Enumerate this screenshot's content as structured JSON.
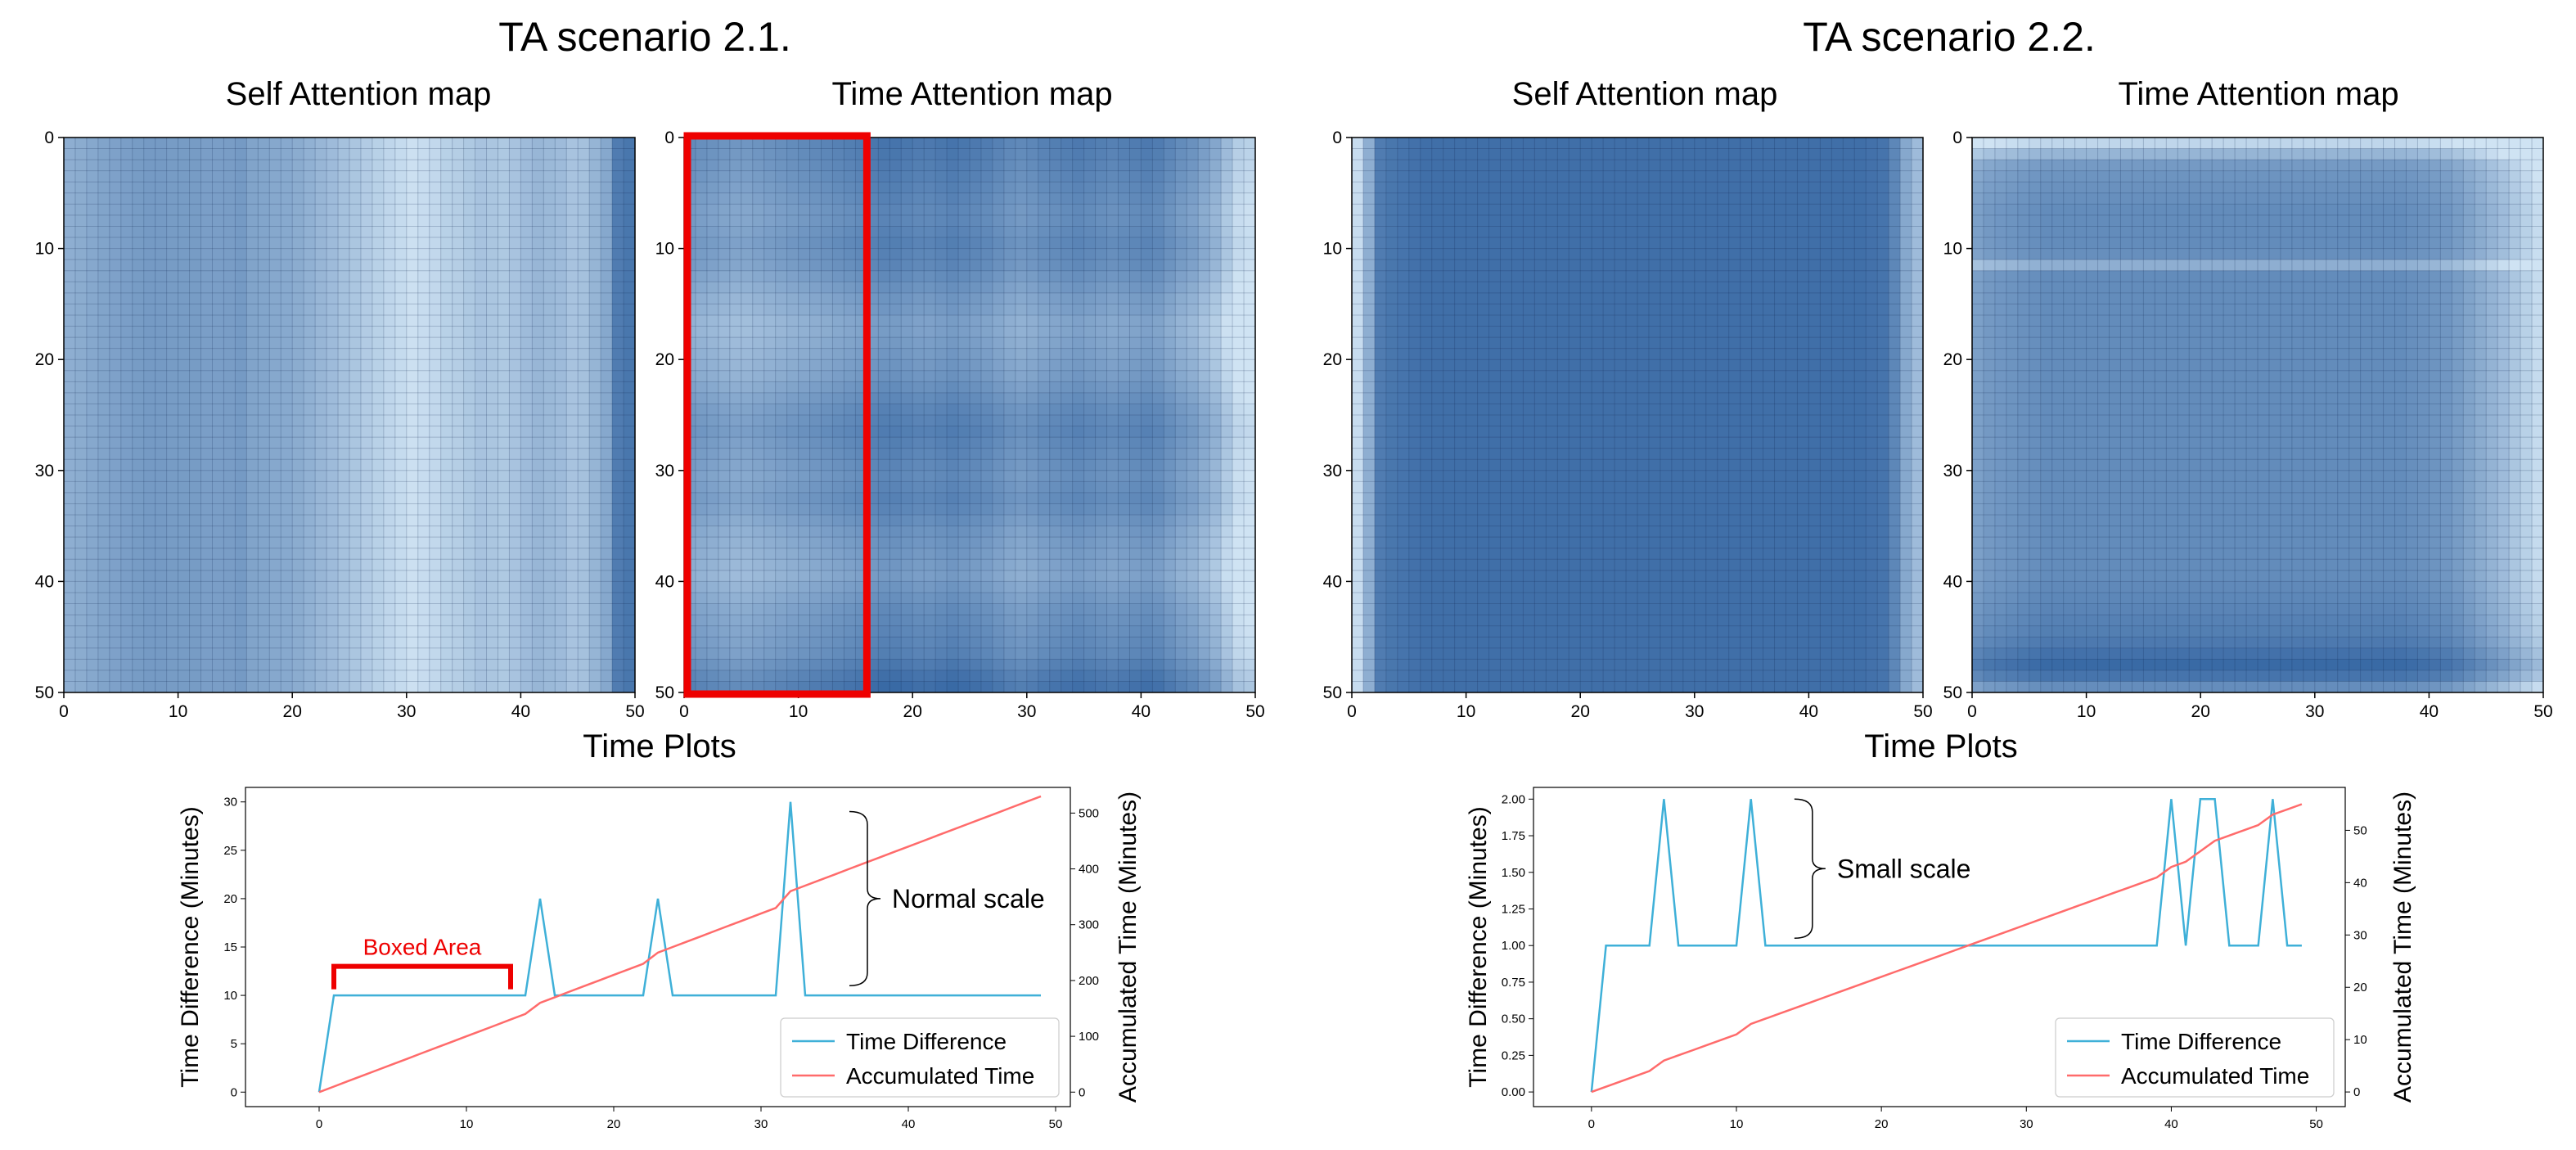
{
  "page": {
    "scenario_titles": [
      "TA scenario 2.1.",
      "TA scenario 2.2."
    ],
    "map_titles": [
      "Self Attention map",
      "Time Attention map"
    ],
    "time_plots_title": "Time Plots",
    "colors": {
      "time_difference": "#3fb0d8",
      "accumulated_time": "#ff6b6b",
      "highlight_box": "#ee0000",
      "map_dark": "#2c5f9e",
      "map_light": "#cfe3f3"
    }
  },
  "chart_data": [
    {
      "type": "heatmap",
      "title": "Self Attention map",
      "scenario": "TA scenario 2.1.",
      "xlim": [
        0,
        50
      ],
      "ylim": [
        0,
        50
      ],
      "xticks": [
        "0",
        "10",
        "20",
        "30",
        "40",
        "50"
      ],
      "yticks": [
        "0",
        "10",
        "20",
        "30",
        "40",
        "50"
      ],
      "grid": true,
      "column_intensity": [
        0.4,
        0.42,
        0.45,
        0.48,
        0.5,
        0.52,
        0.54,
        0.55,
        0.55,
        0.54,
        0.54,
        0.54,
        0.52,
        0.52,
        0.53,
        0.55,
        0.48,
        0.47,
        0.45,
        0.44,
        0.42,
        0.38,
        0.34,
        0.3,
        0.26,
        0.22,
        0.18,
        0.14,
        0.1,
        0.06,
        0.02,
        0.05,
        0.08,
        0.14,
        0.16,
        0.2,
        0.24,
        0.22,
        0.2,
        0.24,
        0.3,
        0.34,
        0.32,
        0.3,
        0.24,
        0.26,
        0.35,
        0.45,
        0.78,
        0.82
      ],
      "row_modifier": [
        0,
        0,
        0,
        0,
        0,
        0,
        0,
        0,
        0,
        0,
        0,
        0,
        0,
        0,
        0,
        0,
        0,
        0,
        0,
        0,
        0,
        0,
        0,
        0,
        0,
        0,
        0,
        0,
        0,
        0,
        0,
        0,
        0,
        0,
        0,
        0,
        0,
        0,
        0,
        0,
        0,
        0,
        0,
        0,
        0,
        0,
        0,
        0,
        0,
        0
      ]
    },
    {
      "type": "heatmap",
      "title": "Time Attention map",
      "scenario": "TA scenario 2.1.",
      "xlim": [
        0,
        50
      ],
      "ylim": [
        0,
        50
      ],
      "xticks": [
        "0",
        "10",
        "20",
        "30",
        "40",
        "50"
      ],
      "yticks": [
        "0",
        "10",
        "20",
        "30",
        "40",
        "50"
      ],
      "grid": true,
      "column_intensity": [
        0.55,
        0.52,
        0.5,
        0.48,
        0.46,
        0.46,
        0.48,
        0.5,
        0.52,
        0.54,
        0.56,
        0.58,
        0.6,
        0.62,
        0.64,
        0.66,
        0.7,
        0.72,
        0.72,
        0.7,
        0.68,
        0.68,
        0.7,
        0.72,
        0.7,
        0.68,
        0.66,
        0.62,
        0.58,
        0.56,
        0.58,
        0.62,
        0.64,
        0.66,
        0.68,
        0.66,
        0.64,
        0.62,
        0.64,
        0.66,
        0.68,
        0.66,
        0.6,
        0.54,
        0.5,
        0.42,
        0.34,
        0.2,
        0.05,
        0.02
      ],
      "row_modifier": [
        0.12,
        0.1,
        0.08,
        0.06,
        0.04,
        0.02,
        0.0,
        0.0,
        0.02,
        0.04,
        0.02,
        0.0,
        -0.04,
        -0.08,
        -0.12,
        -0.14,
        -0.18,
        -0.18,
        -0.16,
        -0.14,
        -0.12,
        -0.1,
        -0.06,
        -0.02,
        0.02,
        0.04,
        0.06,
        0.04,
        0.02,
        0.0,
        -0.02,
        0.0,
        0.02,
        0.0,
        -0.04,
        -0.08,
        -0.1,
        -0.12,
        -0.14,
        -0.16,
        -0.12,
        -0.08,
        -0.04,
        -0.02,
        0.0,
        0.02,
        0.04,
        0.1,
        0.16,
        0.2
      ],
      "highlight": {
        "x": [
          0,
          16
        ],
        "y": [
          0,
          50
        ],
        "annotation": "Boxed Area"
      }
    },
    {
      "type": "heatmap",
      "title": "Self Attention map",
      "scenario": "TA scenario 2.2.",
      "xlim": [
        0,
        50
      ],
      "ylim": [
        0,
        50
      ],
      "xticks": [
        "0",
        "10",
        "20",
        "30",
        "40",
        "50"
      ],
      "yticks": [
        "0",
        "10",
        "20",
        "30",
        "40",
        "50"
      ],
      "grid": true,
      "column_intensity": [
        0.05,
        0.4,
        0.78,
        0.82,
        0.84,
        0.86,
        0.88,
        0.88,
        0.88,
        0.88,
        0.88,
        0.88,
        0.88,
        0.88,
        0.88,
        0.88,
        0.88,
        0.88,
        0.88,
        0.88,
        0.88,
        0.88,
        0.88,
        0.88,
        0.88,
        0.88,
        0.88,
        0.88,
        0.88,
        0.88,
        0.88,
        0.88,
        0.88,
        0.88,
        0.88,
        0.88,
        0.88,
        0.88,
        0.88,
        0.88,
        0.88,
        0.88,
        0.88,
        0.88,
        0.88,
        0.86,
        0.84,
        0.7,
        0.45,
        0.3
      ],
      "row_modifier": [
        0,
        0,
        0,
        0,
        0,
        0,
        0,
        0,
        0,
        0,
        0,
        0,
        0,
        0,
        0,
        0,
        0,
        0,
        0,
        0,
        0,
        0,
        0,
        0,
        0,
        0,
        0,
        0,
        0,
        0,
        0,
        0,
        0,
        0,
        0,
        0,
        0,
        0,
        0,
        0,
        0,
        0,
        0,
        0,
        0,
        0,
        0,
        0,
        0,
        0
      ]
    },
    {
      "type": "heatmap",
      "title": "Time Attention map",
      "scenario": "TA scenario 2.2.",
      "xlim": [
        0,
        50
      ],
      "ylim": [
        0,
        50
      ],
      "xticks": [
        "0",
        "10",
        "20",
        "30",
        "40",
        "50"
      ],
      "yticks": [
        "0",
        "10",
        "20",
        "30",
        "40",
        "50"
      ],
      "grid": true,
      "column_intensity": [
        0.55,
        0.6,
        0.62,
        0.64,
        0.66,
        0.68,
        0.7,
        0.7,
        0.7,
        0.7,
        0.7,
        0.7,
        0.7,
        0.7,
        0.7,
        0.7,
        0.7,
        0.7,
        0.7,
        0.7,
        0.7,
        0.7,
        0.7,
        0.7,
        0.7,
        0.7,
        0.7,
        0.7,
        0.7,
        0.7,
        0.7,
        0.7,
        0.7,
        0.7,
        0.7,
        0.7,
        0.7,
        0.7,
        0.68,
        0.66,
        0.64,
        0.62,
        0.58,
        0.52,
        0.46,
        0.4,
        0.34,
        0.26,
        0.18,
        0.1
      ],
      "row_modifier": [
        -0.6,
        -0.35,
        -0.15,
        -0.1,
        -0.08,
        -0.06,
        -0.04,
        -0.04,
        -0.04,
        -0.04,
        -0.06,
        -0.3,
        -0.04,
        -0.04,
        -0.04,
        -0.04,
        -0.04,
        -0.04,
        -0.04,
        -0.04,
        -0.04,
        -0.04,
        -0.04,
        -0.04,
        -0.04,
        -0.04,
        -0.04,
        -0.04,
        -0.04,
        -0.04,
        -0.04,
        -0.04,
        -0.04,
        -0.04,
        -0.04,
        -0.04,
        -0.04,
        -0.04,
        -0.04,
        -0.04,
        -0.02,
        0.0,
        0.02,
        0.04,
        0.06,
        0.1,
        0.16,
        0.22,
        0.14,
        -0.05
      ]
    },
    {
      "type": "line",
      "title": "Time Plots",
      "scenario": "TA scenario 2.1.",
      "xlim": [
        -5,
        51
      ],
      "ylim": [
        -1.5,
        31.5
      ],
      "y2lim": [
        -26,
        546
      ],
      "xticks": [
        "0",
        "10",
        "20",
        "30",
        "40",
        "50"
      ],
      "yticks": [
        "0",
        "5",
        "10",
        "15",
        "20",
        "25",
        "30"
      ],
      "y2ticks": [
        "0",
        "100",
        "200",
        "300",
        "400",
        "500"
      ],
      "ylabel": "Time Difference (Minutes)",
      "y2label": "Accumulated Time (Minutes)",
      "legend": [
        "Time Difference",
        "Accumulated Time"
      ],
      "legend_position": "lower-right",
      "series": [
        {
          "name": "Time Difference",
          "axis": "left",
          "x": [
            0,
            1,
            2,
            3,
            4,
            5,
            6,
            7,
            8,
            9,
            10,
            11,
            12,
            13,
            14,
            15,
            16,
            17,
            18,
            19,
            20,
            21,
            22,
            23,
            24,
            25,
            26,
            27,
            28,
            29,
            30,
            31,
            32,
            33,
            34,
            35,
            36,
            37,
            38,
            39,
            40,
            41,
            42,
            43,
            44,
            45,
            46,
            47,
            48,
            49
          ],
          "values": [
            0,
            10,
            10,
            10,
            10,
            10,
            10,
            10,
            10,
            10,
            10,
            10,
            10,
            10,
            10,
            20,
            10,
            10,
            10,
            10,
            10,
            10,
            10,
            20,
            10,
            10,
            10,
            10,
            10,
            10,
            10,
            10,
            30,
            10,
            10,
            10,
            10,
            10,
            10,
            10,
            10,
            10,
            10,
            10,
            10,
            10,
            10,
            10,
            10,
            10
          ]
        },
        {
          "name": "Accumulated Time",
          "axis": "right",
          "x": [
            0,
            1,
            2,
            3,
            4,
            5,
            6,
            7,
            8,
            9,
            10,
            11,
            12,
            13,
            14,
            15,
            16,
            17,
            18,
            19,
            20,
            21,
            22,
            23,
            24,
            25,
            26,
            27,
            28,
            29,
            30,
            31,
            32,
            33,
            34,
            35,
            36,
            37,
            38,
            39,
            40,
            41,
            42,
            43,
            44,
            45,
            46,
            47,
            48,
            49
          ],
          "values": [
            0,
            10,
            20,
            30,
            40,
            50,
            60,
            70,
            80,
            90,
            100,
            110,
            120,
            130,
            140,
            160,
            170,
            180,
            190,
            200,
            210,
            220,
            230,
            250,
            260,
            270,
            280,
            290,
            300,
            310,
            320,
            330,
            360,
            370,
            380,
            390,
            400,
            410,
            420,
            430,
            440,
            450,
            460,
            470,
            480,
            490,
            500,
            510,
            520,
            530
          ]
        }
      ],
      "annotations": [
        {
          "text": "Boxed Area",
          "bracket_x": [
            1,
            13
          ],
          "bracket_y": 13
        },
        {
          "text": "Normal scale",
          "brace_x": 36,
          "brace_y": [
            11,
            29
          ]
        }
      ]
    },
    {
      "type": "line",
      "title": "Time Plots",
      "scenario": "TA scenario 2.2.",
      "xlim": [
        -4,
        52
      ],
      "ylim": [
        -0.1,
        2.08
      ],
      "y2lim": [
        -2.8,
        58.2
      ],
      "xticks": [
        "0",
        "10",
        "20",
        "30",
        "40",
        "50"
      ],
      "yticks": [
        "0.00",
        "0.25",
        "0.50",
        "0.75",
        "1.00",
        "1.25",
        "1.50",
        "1.75",
        "2.00"
      ],
      "y2ticks": [
        "0",
        "10",
        "20",
        "30",
        "40",
        "50"
      ],
      "ylabel": "Time Difference (Minutes)",
      "y2label": "Accumulated Time (Minutes)",
      "legend": [
        "Time Difference",
        "Accumulated Time"
      ],
      "legend_position": "lower-right",
      "series": [
        {
          "name": "Time Difference",
          "axis": "left",
          "x": [
            0,
            1,
            2,
            3,
            4,
            5,
            6,
            7,
            8,
            9,
            10,
            11,
            12,
            13,
            14,
            15,
            16,
            17,
            18,
            19,
            20,
            21,
            22,
            23,
            24,
            25,
            26,
            27,
            28,
            29,
            30,
            31,
            32,
            33,
            34,
            35,
            36,
            37,
            38,
            39,
            40,
            41,
            42,
            43,
            44,
            45,
            46,
            47,
            48,
            49
          ],
          "values": [
            0,
            1,
            1,
            1,
            1,
            2,
            1,
            1,
            1,
            1,
            1,
            2,
            1,
            1,
            1,
            1,
            1,
            1,
            1,
            1,
            1,
            1,
            1,
            1,
            1,
            1,
            1,
            1,
            1,
            1,
            1,
            1,
            1,
            1,
            1,
            1,
            1,
            1,
            1,
            1,
            2,
            1,
            2,
            2,
            1,
            1,
            1,
            2,
            1,
            1
          ]
        },
        {
          "name": "Accumulated Time",
          "axis": "right",
          "x": [
            0,
            1,
            2,
            3,
            4,
            5,
            6,
            7,
            8,
            9,
            10,
            11,
            12,
            13,
            14,
            15,
            16,
            17,
            18,
            19,
            20,
            21,
            22,
            23,
            24,
            25,
            26,
            27,
            28,
            29,
            30,
            31,
            32,
            33,
            34,
            35,
            36,
            37,
            38,
            39,
            40,
            41,
            42,
            43,
            44,
            45,
            46,
            47,
            48,
            49
          ],
          "values": [
            0,
            1,
            2,
            3,
            4,
            6,
            7,
            8,
            9,
            10,
            11,
            13,
            14,
            15,
            16,
            17,
            18,
            19,
            20,
            21,
            22,
            23,
            24,
            25,
            26,
            27,
            28,
            29,
            30,
            31,
            32,
            33,
            34,
            35,
            36,
            37,
            38,
            39,
            40,
            41,
            43,
            44,
            46,
            48,
            49,
            50,
            51,
            53,
            54,
            55
          ]
        }
      ],
      "annotations": [
        {
          "text": "Small scale",
          "brace_x": 14,
          "brace_y": [
            1.05,
            2.0
          ]
        }
      ]
    }
  ]
}
